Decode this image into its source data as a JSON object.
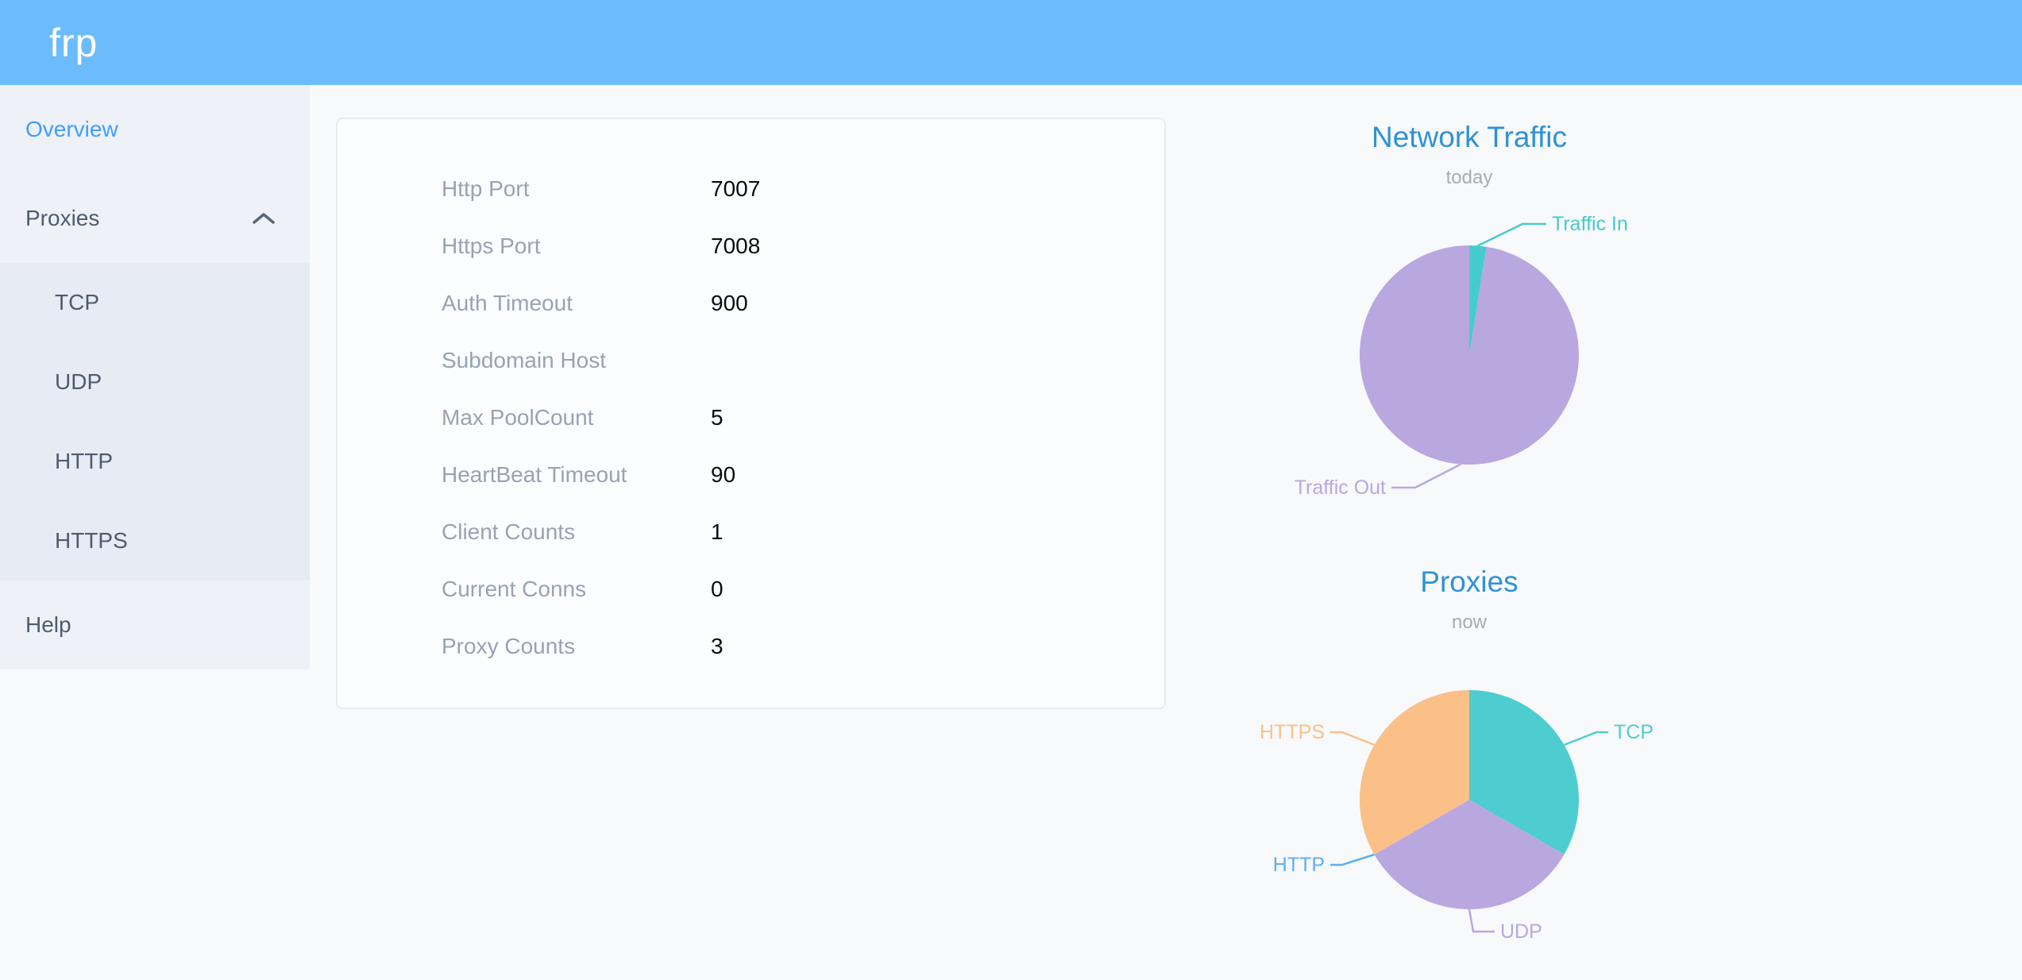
{
  "header": {
    "logo": "frp"
  },
  "sidebar": {
    "overview_label": "Overview",
    "proxies_label": "Proxies",
    "submenu": [
      "TCP",
      "UDP",
      "HTTP",
      "HTTPS"
    ],
    "help_label": "Help",
    "active_color": "#409eff"
  },
  "card": {
    "rows": [
      {
        "label": "Http Port",
        "value": "7007"
      },
      {
        "label": "Https Port",
        "value": "7008"
      },
      {
        "label": "Auth Timeout",
        "value": "900"
      },
      {
        "label": "Subdomain Host",
        "value": ""
      },
      {
        "label": "Max PoolCount",
        "value": "5"
      },
      {
        "label": "HeartBeat Timeout",
        "value": "90"
      },
      {
        "label": "Client Counts",
        "value": "1"
      },
      {
        "label": "Current Conns",
        "value": "0"
      },
      {
        "label": "Proxy Counts",
        "value": "3"
      }
    ]
  },
  "chart_data": [
    {
      "type": "pie",
      "title": "Network Traffic",
      "subtitle": "today",
      "legend_position": "callout-labels",
      "slices": [
        {
          "name": "Traffic In",
          "value": 2.5,
          "unit": "percent",
          "color": "#45cbce"
        },
        {
          "name": "Traffic Out",
          "value": 97.5,
          "unit": "percent",
          "color": "#b9a7e0"
        }
      ]
    },
    {
      "type": "pie",
      "title": "Proxies",
      "subtitle": "now",
      "legend_position": "callout-labels",
      "slices": [
        {
          "name": "TCP",
          "value": 1,
          "unit": "proxies",
          "color": "#4ecdd1"
        },
        {
          "name": "UDP",
          "value": 1,
          "unit": "proxies",
          "color": "#b9a7e0"
        },
        {
          "name": "HTTP",
          "value": 0,
          "unit": "proxies",
          "color": "#5ab1ef"
        },
        {
          "name": "HTTPS",
          "value": 1,
          "unit": "proxies",
          "color": "#fac088"
        }
      ]
    }
  ],
  "colors": {
    "header_bg": "#6cbcfc",
    "chart_title": "#2f92d5",
    "sidebar_bg": "#eef1f7",
    "submenu_bg": "#e7ebf3"
  }
}
